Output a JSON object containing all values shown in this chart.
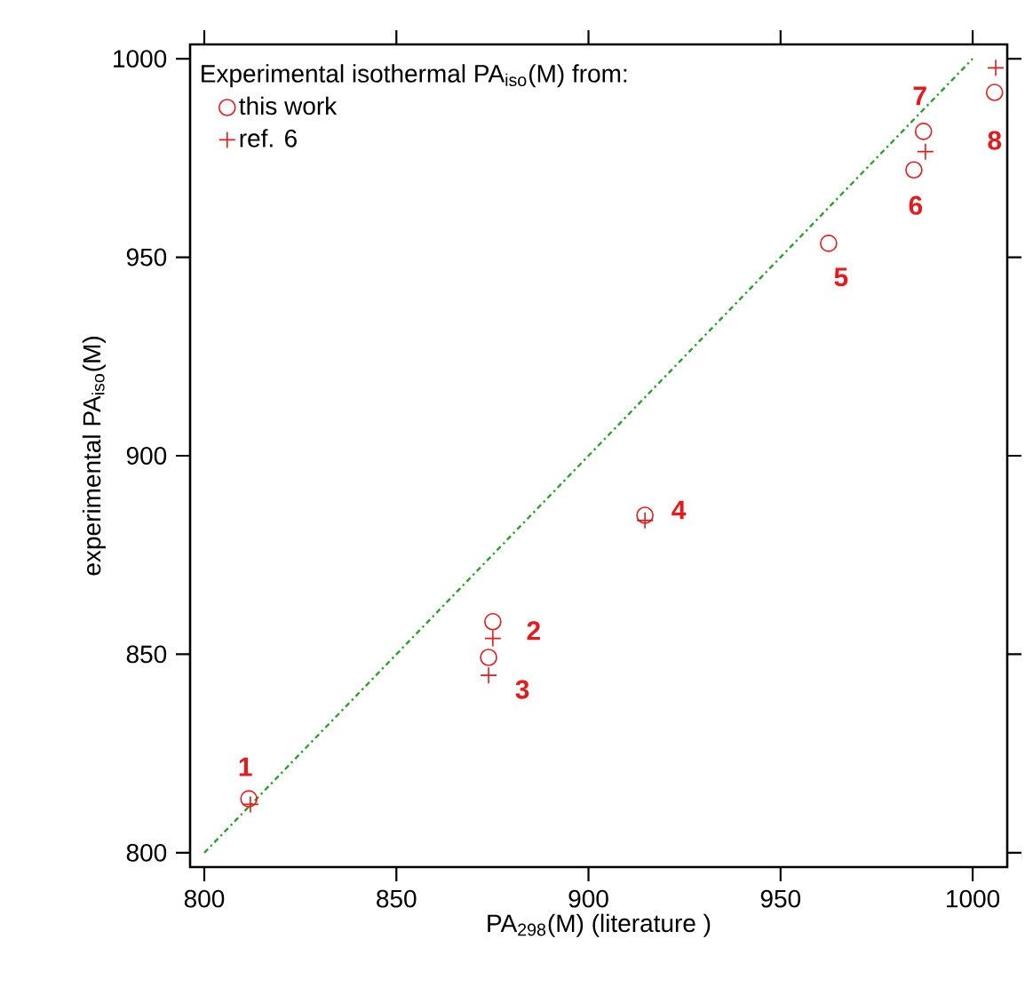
{
  "chart_data": {
    "type": "scatter",
    "xlabel": "PA$_{298}$(M) (literature )",
    "ylabel": "experimental PA$_{iso}$(M)",
    "legend_title": "Experimental isothermal PA$_{iso}$(M) from:",
    "xlim": [
      796.3,
      1009
    ],
    "ylim": [
      796.4,
      1003.6
    ],
    "xticks": [
      800,
      850,
      900,
      950,
      1000
    ],
    "yticks": [
      800,
      850,
      900,
      950,
      1000
    ],
    "legend": "top left",
    "series": [
      {
        "name": "this work",
        "color": "#e41a1c",
        "marker": "circle",
        "x": [
          811.6,
          875.1,
          874,
          914.7,
          962.5,
          984.7,
          987.2,
          1005.7
        ],
        "values": [
          813.6,
          858.2,
          849.2,
          885,
          953.5,
          972,
          981.7,
          991.5
        ]
      },
      {
        "name": "ref. 6",
        "color": "#e41a1c",
        "marker": "cross",
        "x": [
          812,
          875.1,
          874,
          914.7,
          987.7,
          1006
        ],
        "values": [
          812.2,
          854,
          844.7,
          883.7,
          976.6,
          997.7
        ]
      },
      {
        "type": "line",
        "color": "#2ca02c",
        "line_style": "dashdot",
        "marker": "none",
        "x": [
          800,
          1000
        ],
        "values": [
          800,
          1000
        ]
      }
    ],
    "annotations": [
      {
        "text": "1",
        "x": 811.6,
        "y": 813.6
      },
      {
        "text": "2",
        "x": 875.1,
        "y": 858.2
      },
      {
        "text": "3",
        "x": 874,
        "y": 849.2
      },
      {
        "text": "4",
        "x": 914.7,
        "y": 885
      },
      {
        "text": "5",
        "x": 962.5,
        "y": 953.5
      },
      {
        "text": "6",
        "x": 984.7,
        "y": 972
      },
      {
        "text": "7",
        "x": 987.2,
        "y": 981.7
      },
      {
        "text": "8",
        "x": 1005.7,
        "y": 991.5
      }
    ]
  }
}
